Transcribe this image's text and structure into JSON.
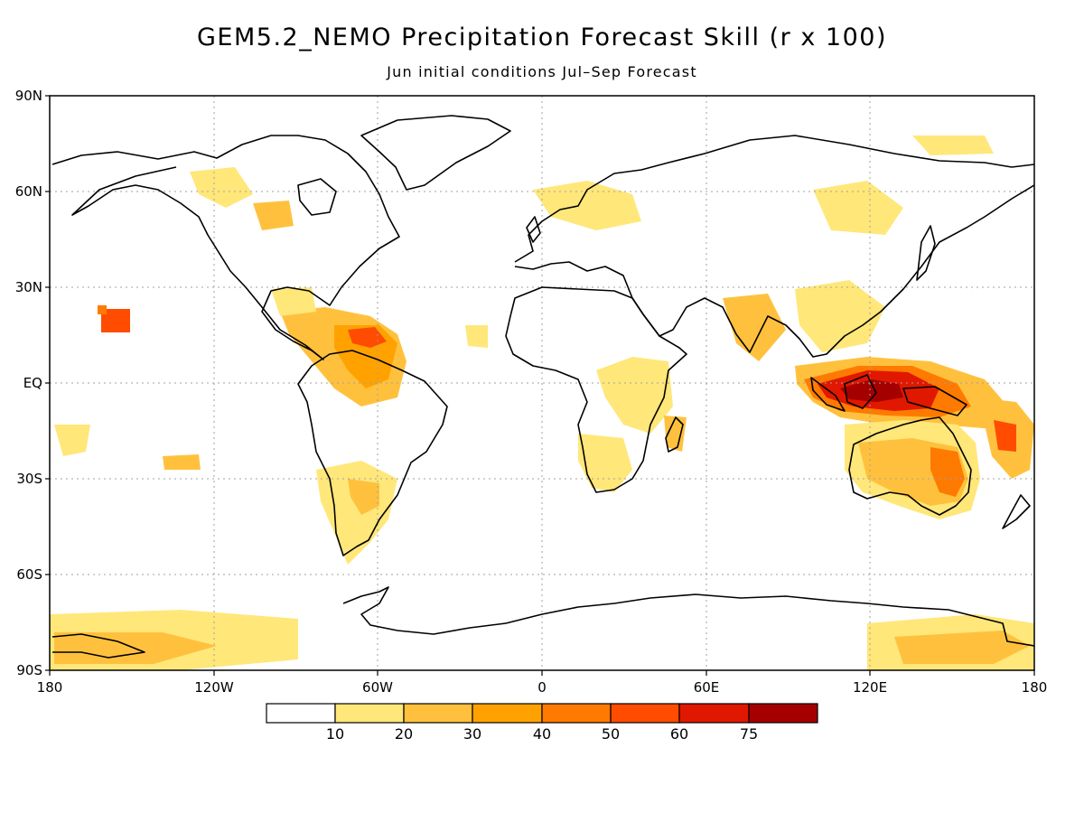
{
  "title": "GEM5.2_NEMO Precipitation Forecast Skill (r x 100)",
  "subtitle": "Jun initial conditions  Jul–Sep Forecast",
  "map": {
    "lat_labels": [
      "90N",
      "60N",
      "30N",
      "EQ",
      "30S",
      "60S",
      "90S"
    ],
    "lon_labels": [
      "180",
      "120W",
      "60W",
      "0",
      "60E",
      "120E",
      "180"
    ],
    "projection": "cylindrical equidistant",
    "grid": "dotted gray lines every 30 degrees"
  },
  "colorbar": {
    "labels": [
      "10",
      "20",
      "30",
      "40",
      "50",
      "60",
      "75"
    ],
    "colors": [
      "#ffffff",
      "#ffe77a",
      "#ffc13d",
      "#ffa200",
      "#ff7a00",
      "#ff4c00",
      "#e11800",
      "#a50000"
    ]
  },
  "skill_regions": [
    {
      "region": "Maritime Continent / Indonesia",
      "level": "60-75"
    },
    {
      "region": "Eastern Australia",
      "level": "50-60"
    },
    {
      "region": "Caribbean / Northern South America",
      "level": "40-60"
    },
    {
      "region": "Hawaii area",
      "level": "50-60"
    },
    {
      "region": "Antarctica coast",
      "level": "10-30"
    }
  ]
}
